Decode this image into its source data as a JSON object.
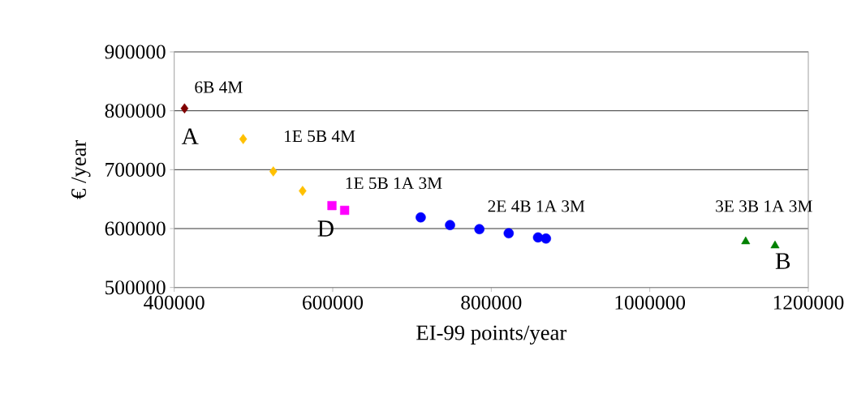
{
  "chart_data": {
    "type": "scatter",
    "xlabel": "EI-99 points/year",
    "ylabel": "€ /year",
    "xlim": [
      400000,
      1200000
    ],
    "xticks": [
      400000,
      600000,
      800000,
      1000000,
      1200000
    ],
    "ylim": [
      500000,
      900000
    ],
    "yticks": [
      500000,
      600000,
      700000,
      800000,
      900000
    ],
    "grid": "y",
    "series": [
      {
        "color": "#800000",
        "marker": "diamond",
        "x": [
          413000
        ],
        "values": [
          804000
        ]
      },
      {
        "color": "#ffc000",
        "marker": "diamond",
        "x": [
          487000,
          525000,
          562000
        ],
        "values": [
          752000,
          697000,
          664000
        ]
      },
      {
        "color": "#ff00ff",
        "marker": "square",
        "x": [
          599000,
          615000
        ],
        "values": [
          639000,
          631000
        ]
      },
      {
        "color": "#0000ff",
        "marker": "circle",
        "x": [
          711000,
          748000,
          785000,
          822000,
          859000,
          869000
        ],
        "values": [
          619000,
          606000,
          599000,
          592000,
          585000,
          583000
        ]
      },
      {
        "color": "#008000",
        "marker": "triangle",
        "x": [
          1121000,
          1158000
        ],
        "values": [
          578000,
          571000
        ]
      }
    ],
    "annotations": [
      "6B 4M",
      "A",
      "1E 5B 4M",
      "1E 5B 1A 3M",
      "D",
      "2E 4B 1A 3M",
      "3E 3B 1A 3M",
      "B"
    ]
  }
}
